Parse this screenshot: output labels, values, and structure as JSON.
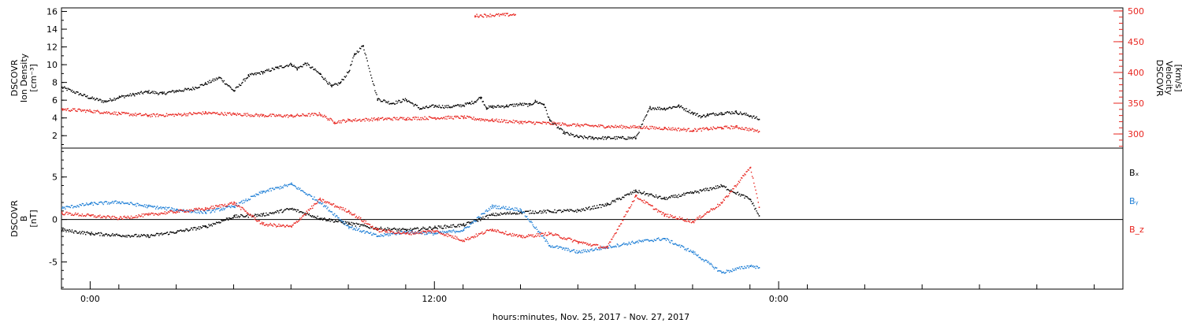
{
  "colors": {
    "black": "#000000",
    "red": "#e8251f",
    "blue": "#1f7fd6"
  },
  "xaxis": {
    "label": "hours:minutes, Nov. 25, 2017 - Nov. 27, 2017",
    "range_hours": [
      -1,
      36
    ],
    "ticks": [
      {
        "h": 0,
        "label": "0:00"
      },
      {
        "h": 12,
        "label": "12:00"
      },
      {
        "h": 24,
        "label": "0:00"
      }
    ],
    "minor_tick_step_h": 2
  },
  "chart_data": [
    {
      "type": "scatter",
      "panel": "top",
      "left_axis": {
        "label_lines": [
          "DSCOVR",
          "Ion Density",
          "[cm⁻³]"
        ],
        "range": [
          0.6,
          16.4
        ],
        "ticks": [
          2,
          4,
          6,
          8,
          10,
          12,
          14,
          16
        ]
      },
      "right_axis": {
        "label_lines": [
          "DSCOVR",
          "Velocity",
          "[km/s]"
        ],
        "range": [
          277,
          505
        ],
        "ticks": [
          300,
          350,
          400,
          450,
          500
        ],
        "color": "#e8251f"
      },
      "series": [
        {
          "color": "#000000",
          "axis": "left",
          "x": [
            -1,
            0,
            0.5,
            1,
            1.5,
            2,
            2.5,
            3,
            3.5,
            4,
            4.5,
            5,
            5.5,
            6,
            6.5,
            7,
            7.2,
            7.5,
            8,
            8.4,
            8.7,
            9,
            9.2,
            9.5,
            10,
            10.5,
            11,
            11.5,
            12,
            12.5,
            13,
            13.2,
            13.4,
            13.6,
            13.8,
            14,
            14.5,
            15,
            15.3,
            15.5,
            15.8,
            16,
            16.5,
            17,
            17.5,
            18,
            18.5,
            19,
            19.5,
            20,
            20.5,
            21,
            21.3,
            21.5,
            22,
            22.5,
            23,
            23.3
          ],
          "y": [
            7.5,
            6.3,
            5.9,
            6.4,
            6.7,
            7.0,
            6.8,
            7.1,
            7.3,
            7.9,
            8.6,
            7.1,
            8.8,
            9.2,
            9.7,
            10.1,
            9.6,
            10.2,
            9.0,
            7.6,
            8.0,
            9.3,
            11.2,
            12.2,
            6.2,
            5.7,
            6.1,
            5.1,
            5.4,
            5.3,
            5.5,
            5.7,
            5.9,
            6.4,
            5.2,
            5.3,
            5.4,
            5.6,
            5.5,
            5.9,
            5.6,
            3.8,
            2.4,
            1.9,
            1.8,
            1.8,
            1.8,
            1.8,
            5.2,
            5.1,
            5.4,
            4.6,
            4.2,
            4.4,
            4.6,
            4.7,
            4.3,
            3.9
          ]
        },
        {
          "color": "#e8251f",
          "axis": "right",
          "x": [
            -1,
            0,
            1,
            2,
            3,
            4,
            5,
            6,
            7,
            8,
            8.5,
            9,
            10,
            11,
            12,
            13,
            13.5,
            14,
            15,
            16,
            17,
            18,
            19,
            20,
            21,
            21.5,
            22,
            22.5,
            23,
            23.3
          ],
          "y": [
            341,
            338,
            334,
            331,
            332,
            335,
            333,
            331,
            330,
            333,
            320,
            323,
            325,
            326,
            327,
            328,
            325,
            323,
            320,
            318,
            315,
            313,
            312,
            310,
            307,
            309,
            311,
            312,
            308,
            305
          ]
        },
        {
          "color": "#e8251f",
          "axis": "right",
          "x": [
            13.4,
            14.8
          ],
          "y": [
            493,
            495
          ]
        }
      ]
    },
    {
      "type": "scatter",
      "panel": "bottom",
      "left_axis": {
        "label_lines": [
          "DSCOVR",
          "B",
          "[nT]"
        ],
        "range": [
          -8.2,
          8.4
        ],
        "ticks": [
          -5,
          0,
          5
        ],
        "zero_line": true
      },
      "legend": [
        "Bₓ",
        "Bᵧ",
        "B_z"
      ],
      "series": [
        {
          "name": "Bₓ",
          "color": "#000000",
          "x": [
            -1,
            0,
            1,
            2,
            3,
            4,
            5,
            6,
            7,
            8,
            9,
            10,
            11,
            12,
            13,
            14,
            15,
            16,
            17,
            18,
            19,
            20,
            21,
            22,
            23,
            23.3
          ],
          "y": [
            -1.2,
            -1.6,
            -1.8,
            -1.9,
            -1.4,
            -0.8,
            0.4,
            0.6,
            1.3,
            0.2,
            -0.4,
            -1.0,
            -1.2,
            -0.9,
            -0.6,
            0.6,
            0.9,
            1.0,
            1.1,
            1.8,
            3.4,
            2.5,
            3.2,
            4.0,
            2.4,
            0.5
          ]
        },
        {
          "name": "Bᵧ",
          "color": "#1f7fd6",
          "x": [
            -1,
            0,
            1,
            2,
            3,
            4,
            5,
            6,
            7,
            8,
            9,
            10,
            11,
            12,
            13,
            14,
            15,
            16,
            17,
            18,
            19,
            20,
            21,
            22,
            23,
            23.3
          ],
          "y": [
            1.4,
            1.9,
            2.1,
            1.6,
            1.2,
            0.9,
            1.6,
            3.3,
            4.2,
            2.1,
            -0.8,
            -1.9,
            -1.4,
            -1.6,
            -1.2,
            1.6,
            1.2,
            -3.0,
            -3.8,
            -3.2,
            -2.6,
            -2.2,
            -3.8,
            -6.2,
            -5.4,
            -5.6
          ]
        },
        {
          "name": "B_z",
          "color": "#e8251f",
          "x": [
            -1,
            0,
            1,
            2,
            3,
            4,
            5,
            6,
            7,
            8,
            9,
            10,
            11,
            12,
            13,
            14,
            15,
            16,
            17,
            18,
            19,
            20,
            21,
            22,
            23,
            23.3
          ],
          "y": [
            0.8,
            0.5,
            0.2,
            0.6,
            1.0,
            1.3,
            2.0,
            -0.5,
            -0.8,
            2.4,
            1.0,
            -1.2,
            -1.6,
            -1.3,
            -2.4,
            -1.1,
            -2.0,
            -1.6,
            -2.6,
            -3.3,
            2.8,
            0.6,
            -0.2,
            2.0,
            6.2,
            1.5
          ]
        }
      ]
    }
  ]
}
